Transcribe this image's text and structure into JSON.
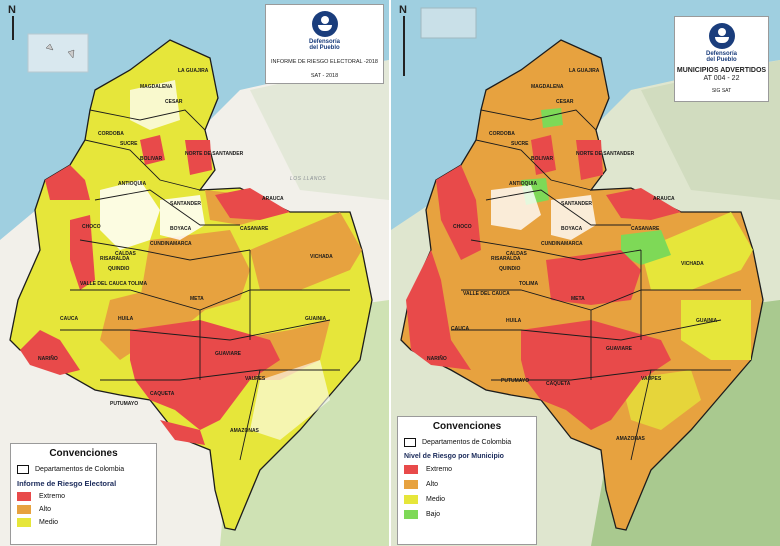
{
  "colors": {
    "extremo": "#e84a4a",
    "alto": "#e7a23f",
    "medio": "#e6e63a",
    "bajo": "#7ed957",
    "sea": "#9fcfe0",
    "land_base": "#f2f0ea",
    "forest": "#cfe2b4",
    "outline": "#1c1c1c"
  },
  "left_map": {
    "title_box": {
      "logo_icon": "defensoria-logo-icon",
      "org": "Defensoría\ndel Pueblo",
      "title": "INFORME DE RIESGO ELECTORAL -2018",
      "subtitle": "SAT - 2018"
    },
    "north_label": "N",
    "legend": {
      "title": "Convenciones",
      "outline_label": "Departamentos de Colombia",
      "subtitle": "Informe de Riesgo Electoral",
      "items": [
        {
          "label": "Extremo",
          "level": "extremo"
        },
        {
          "label": "Alto",
          "level": "alto"
        },
        {
          "label": "Medio",
          "level": "medio"
        }
      ]
    },
    "department_labels": [
      "LA GUAJIRA",
      "MAGDALENA",
      "CESAR",
      "CORDOBA",
      "SUCRE",
      "BOLIVAR",
      "NORTE DE SANTANDER",
      "ANTIOQUIA",
      "SANTANDER",
      "BOYACA",
      "CUNDINAMARCA",
      "ARAUCA",
      "CASANARE",
      "CHOCO",
      "RISARALDA",
      "CALDAS",
      "QUINDIO",
      "VALLE DEL CAUCA",
      "TOLIMA",
      "HUILA",
      "META",
      "VICHADA",
      "CAUCA",
      "NARIÑO",
      "CAQUETA",
      "GUAINIA",
      "GUAVIARE",
      "VAUPES",
      "PUTUMAYO",
      "AMAZONAS"
    ],
    "region_labels": [
      "LOS LLANOS"
    ]
  },
  "right_map": {
    "title_box": {
      "logo_icon": "defensoria-logo-icon",
      "org": "Defensoría\ndel Pueblo",
      "title": "MUNICIPIOS ADVERTIDOS",
      "subtitle": "AT 004 - 22",
      "footer": "SIG SAT"
    },
    "north_label": "N",
    "legend": {
      "title": "Convenciones",
      "outline_label": "Departamentos de Colombia",
      "subtitle": "Nivel de Riesgo por Municipio",
      "items": [
        {
          "label": "Extremo",
          "level": "extremo"
        },
        {
          "label": "Alto",
          "level": "alto"
        },
        {
          "label": "Medio",
          "level": "medio"
        },
        {
          "label": "Bajo",
          "level": "bajo"
        }
      ]
    },
    "department_labels": [
      "LA GUAJIRA",
      "MAGDALENA",
      "CESAR",
      "CORDOBA",
      "SUCRE",
      "BOLIVAR",
      "NORTE DE SANTANDER",
      "ANTIOQUIA",
      "SANTANDER",
      "ARAUCA",
      "BOYACA",
      "CASANARE",
      "CUNDINAMARCA",
      "CHOCO",
      "RISARALDA",
      "CALDAS",
      "QUINDIO",
      "TOLIMA",
      "VALLE DEL CAUCA",
      "HUILA",
      "META",
      "VICHADA",
      "GUAINIA",
      "CAUCA",
      "NARIÑO",
      "GUAVIARE",
      "CAQUETA",
      "VAUPES",
      "PUTUMAYO",
      "AMAZONAS"
    ]
  }
}
